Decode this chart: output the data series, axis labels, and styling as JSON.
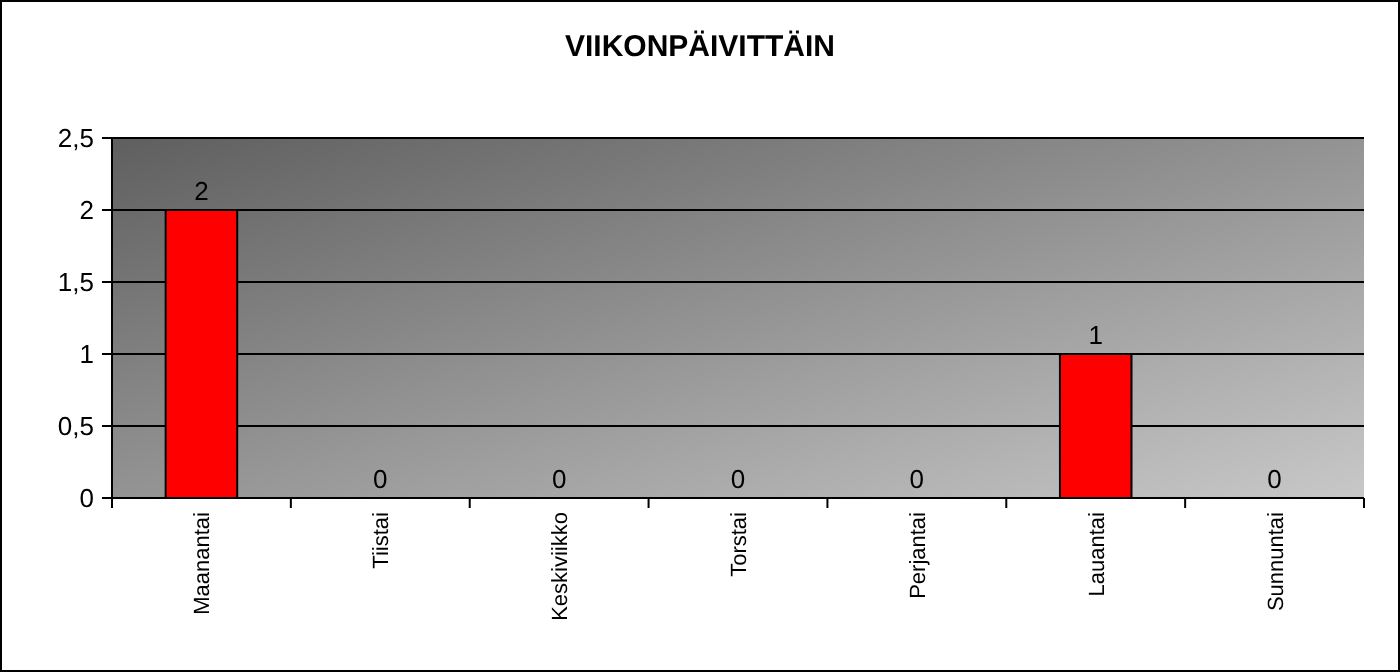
{
  "chart_data": {
    "type": "bar",
    "title": "VIIKONPÄIVITTÄIN",
    "categories": [
      "Maanantai",
      "Tiistai",
      "Keskiviikko",
      "Torstai",
      "Perjantai",
      "Lauantai",
      "Sunnuntai"
    ],
    "values": [
      2,
      0,
      0,
      0,
      0,
      1,
      0
    ],
    "color": "#ff0000",
    "ylim": [
      0,
      2.5
    ],
    "yticks": [
      0,
      {
        "value": 0.5,
        "label": "0,5"
      },
      1,
      {
        "value": 1.5,
        "label": "1,5"
      },
      2,
      {
        "value": 2.5,
        "label": "2,5"
      }
    ],
    "grid": "y",
    "data_labels": true
  }
}
